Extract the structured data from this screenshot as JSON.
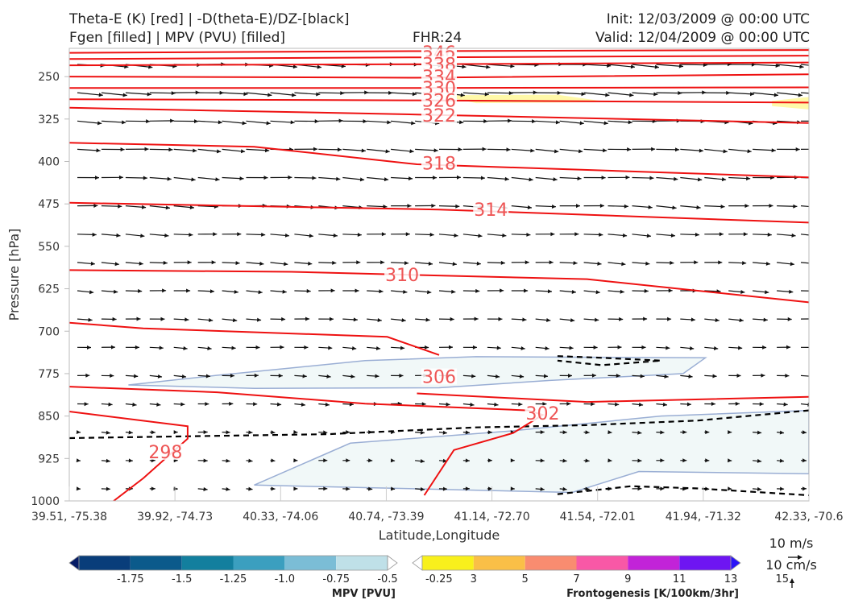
{
  "header": {
    "title_line1": "Theta-E (K) [red] | -D(theta-E)/DZ-[black]",
    "title_line2": "Fgen [filled] | MPV (PVU) [filled]",
    "fhr": "FHR:24",
    "init": "Init: 12/03/2009 @ 00:00 UTC",
    "valid": "Valid: 12/04/2009 @ 00:00 UTC"
  },
  "chart_data": {
    "type": "cross-section",
    "xlabel": "Latitude,Longitude",
    "ylabel": "Pressure [hPa]",
    "x_ticks": [
      "39.51, -75.38",
      "39.92, -74.73",
      "40.33, -74.06",
      "40.74, -73.39",
      "41.14, -72.70",
      "41.54, -72.01",
      "41.94, -71.32",
      "42.33, -70.6"
    ],
    "y_ticks": [
      250,
      325,
      400,
      475,
      550,
      625,
      700,
      775,
      850,
      925,
      1000
    ],
    "ylim": [
      1000,
      200
    ],
    "theta_e_contours": [
      {
        "label": "346",
        "value": 346,
        "points": [
          [
            0,
            208
          ],
          [
            0.47,
            205
          ],
          [
            1,
            203
          ]
        ],
        "label_at": [
          0.5,
          207
        ]
      },
      {
        "label": "342",
        "value": 342,
        "points": [
          [
            0,
            219
          ],
          [
            0.47,
            216
          ],
          [
            1,
            213
          ]
        ],
        "label_at": [
          0.5,
          216
        ]
      },
      {
        "label": "338",
        "value": 338,
        "points": [
          [
            0,
            230
          ],
          [
            0.47,
            228
          ],
          [
            1,
            225
          ]
        ],
        "label_at": [
          0.5,
          228
        ]
      },
      {
        "label": "334",
        "value": 334,
        "points": [
          [
            0,
            250
          ],
          [
            0.47,
            252
          ],
          [
            1,
            246
          ]
        ],
        "label_at": [
          0.5,
          250
        ]
      },
      {
        "label": "330",
        "value": 330,
        "points": [
          [
            0,
            270
          ],
          [
            0.47,
            270
          ],
          [
            1,
            269
          ]
        ],
        "label_at": [
          0.5,
          270
        ]
      },
      {
        "label": "326",
        "value": 326,
        "points": [
          [
            0,
            290
          ],
          [
            0.47,
            292
          ],
          [
            1,
            296
          ]
        ],
        "label_at": [
          0.5,
          292
        ]
      },
      {
        "label": "322",
        "value": 322,
        "points": [
          [
            0,
            305
          ],
          [
            0.47,
            317
          ],
          [
            1,
            332
          ]
        ],
        "label_at": [
          0.5,
          318
        ]
      },
      {
        "label": "318",
        "value": 318,
        "points": [
          [
            0,
            367
          ],
          [
            0.25,
            374
          ],
          [
            0.47,
            405
          ],
          [
            1,
            428
          ]
        ],
        "label_at": [
          0.5,
          403
        ]
      },
      {
        "label": "314",
        "value": 314,
        "points": [
          [
            0,
            473
          ],
          [
            0.5,
            485
          ],
          [
            1,
            508
          ]
        ],
        "label_at": [
          0.57,
          485
        ]
      },
      {
        "label": "310",
        "value": 310,
        "points": [
          [
            0,
            592
          ],
          [
            0.3,
            595
          ],
          [
            0.45,
            600
          ],
          [
            0.7,
            608
          ],
          [
            1,
            649
          ]
        ],
        "label_at": [
          0.45,
          600
        ]
      },
      {
        "label": "306",
        "value": 306,
        "points": [
          [
            0,
            685
          ],
          [
            0.1,
            695
          ],
          [
            0.43,
            710
          ],
          [
            0.5,
            742
          ]
        ],
        "label_at": [
          0.5,
          780
        ]
      },
      {
        "label": "306b",
        "value": 306,
        "points": [
          [
            0.47,
            810
          ],
          [
            0.7,
            825
          ],
          [
            1,
            816
          ]
        ],
        "label_at": null
      },
      {
        "label": "302",
        "value": 302,
        "points": [
          [
            0,
            798
          ],
          [
            0.2,
            808
          ],
          [
            0.4,
            828
          ],
          [
            0.62,
            840
          ],
          [
            0.64,
            848
          ],
          [
            0.6,
            880
          ],
          [
            0.52,
            910
          ],
          [
            0.48,
            990
          ]
        ],
        "label_at": [
          0.64,
          845
        ]
      },
      {
        "label": "298",
        "value": 298,
        "points": [
          [
            0,
            842
          ],
          [
            0.16,
            868
          ],
          [
            0.16,
            890
          ],
          [
            0.1,
            960
          ],
          [
            0.06,
            1000
          ]
        ],
        "label_at": [
          0.13,
          913
        ]
      }
    ],
    "dtheta_dz_contours": [
      {
        "points": [
          [
            0,
            889
          ],
          [
            0.35,
            882
          ],
          [
            0.55,
            870
          ],
          [
            0.7,
            866
          ],
          [
            0.85,
            858
          ],
          [
            1,
            840
          ]
        ]
      },
      {
        "points": [
          [
            0.66,
            988
          ],
          [
            0.76,
            974
          ],
          [
            0.85,
            978
          ],
          [
            1,
            990
          ]
        ]
      },
      {
        "points": [
          [
            0.66,
            744
          ],
          [
            0.72,
            747
          ],
          [
            0.8,
            752
          ],
          [
            0.72,
            760
          ],
          [
            0.66,
            752
          ]
        ]
      }
    ],
    "mpv_filled": [
      {
        "level": -0.25,
        "color": "#f1f8f8",
        "points": [
          [
            0.08,
            795
          ],
          [
            0.2,
            778
          ],
          [
            0.4,
            752
          ],
          [
            0.55,
            745
          ],
          [
            0.86,
            747
          ],
          [
            0.83,
            775
          ],
          [
            0.65,
            787
          ],
          [
            0.5,
            800
          ],
          [
            0.25,
            801
          ]
        ]
      },
      {
        "level": -0.25,
        "color": "#f1f8f8",
        "points": [
          [
            0.25,
            972
          ],
          [
            0.38,
            898
          ],
          [
            0.6,
            876
          ],
          [
            0.8,
            850
          ],
          [
            1,
            840
          ],
          [
            1,
            952
          ],
          [
            0.77,
            948
          ],
          [
            0.68,
            985
          ]
        ]
      }
    ],
    "fgen_filled": [
      {
        "level": 3,
        "color": "#fff9a8",
        "points": [
          [
            0.5,
            283
          ],
          [
            0.66,
            282
          ],
          [
            0.73,
            295
          ],
          [
            0.55,
            297
          ]
        ]
      },
      {
        "level": 3,
        "color": "#fff9a8",
        "points": [
          [
            0.95,
            293
          ],
          [
            1,
            286
          ],
          [
            1,
            308
          ],
          [
            0.95,
            302
          ]
        ]
      }
    ],
    "wind_grid": {
      "nx": 31,
      "levels": [
        200,
        250,
        300,
        350,
        400,
        450,
        500,
        550,
        600,
        650,
        700,
        750,
        800,
        850,
        900,
        950
      ],
      "ref_arrow": "10 m/s"
    },
    "colorbars": [
      {
        "title": "MPV [PVU]",
        "ticks": [
          "-1.75",
          "-1.5",
          "-1.25",
          "-1.0",
          "-0.75",
          "-0.5",
          "-0.25"
        ],
        "colors": [
          "#061c66",
          "#093d7a",
          "#0b5a8b",
          "#137f9e",
          "#3b9fbf",
          "#7bbdd6",
          "#bfe0e8",
          "#ffffff"
        ]
      },
      {
        "title": "Frontogenesis [K/100km/3hr]",
        "ticks": [
          "3",
          "5",
          "7",
          "9",
          "11",
          "13",
          "15"
        ],
        "colors": [
          "#ffffff",
          "#f8f01c",
          "#fabf47",
          "#f98c70",
          "#f858a6",
          "#c223d8",
          "#6e15f2",
          "#2b14f8"
        ]
      }
    ]
  },
  "legend": {
    "ref_wind_h": "10 m/s",
    "ref_wind_v": "10 cm/s"
  },
  "colors": {
    "theta_e": "#ee1111",
    "dtheta_dz": "#000000",
    "wind": "#111111",
    "mpv_fill": "#f1f8f8",
    "mpv_edge": "#9aaed4"
  }
}
